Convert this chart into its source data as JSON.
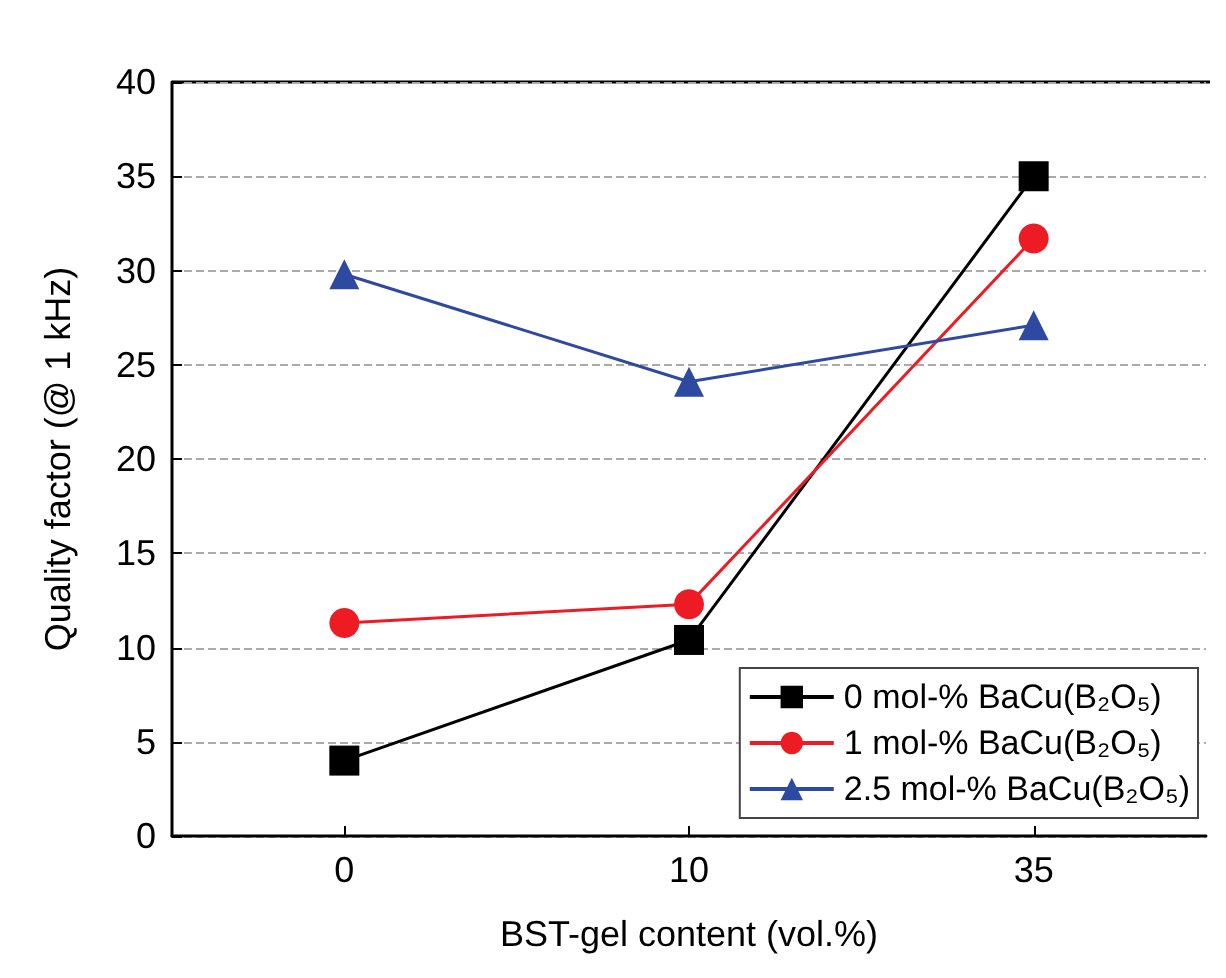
{
  "chart_data": {
    "type": "line",
    "xlabel": "BST-gel content (vol.%)",
    "ylabel": "Quality factor (@ 1 kHz)",
    "categories": [
      "0",
      "10",
      "35"
    ],
    "ylim": [
      0,
      40
    ],
    "yticks": [
      0,
      5,
      10,
      15,
      20,
      25,
      30,
      35,
      40
    ],
    "grid": "y",
    "legend": "bottom right",
    "series": [
      {
        "name": "0 mol-% BaCu(B₂O₅)",
        "color": "#000000",
        "marker": "square",
        "values": [
          4.0,
          10.4,
          35.0
        ]
      },
      {
        "name": "1 mol-% BaCu(B₂O₅)",
        "color": "#ed1c24",
        "marker": "circle",
        "values": [
          11.3,
          12.3,
          31.7
        ]
      },
      {
        "name": "2.5 mol-% BaCu(B₂O₅)",
        "color": "#2e49a0",
        "marker": "triangle",
        "values": [
          29.8,
          24.1,
          27.1
        ]
      }
    ]
  }
}
